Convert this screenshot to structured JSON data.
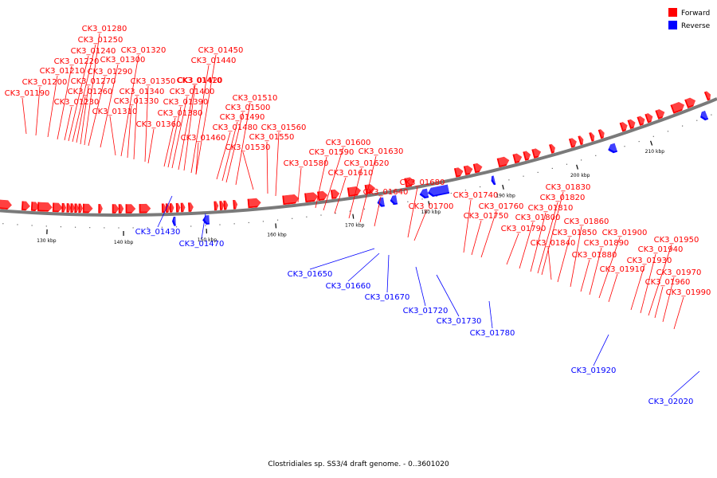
{
  "colors": {
    "forward": "#ff0000",
    "reverse": "#0000ff",
    "backbone": "#7a7a7a"
  },
  "legend": [
    {
      "label": "Forward",
      "color": "#ff0000"
    },
    {
      "label": "Reverse",
      "color": "#0000ff"
    }
  ],
  "caption": "Clostridiales sp. SS3/4 draft genome. - 0..3601020",
  "kbp_ticks": [
    "130 kbp",
    "140 kbp",
    "150 kbp",
    "160 kbp",
    "170 kbp",
    "180 kbp",
    "190 kbp",
    "200 kbp",
    "210 kbp"
  ],
  "forward_labels": [
    "CK3_01190",
    "CK3_01200",
    "CK3_01210",
    "CK3_01220",
    "CK3_01230",
    "CK3_01240",
    "CK3_01250",
    "CK3_01260",
    "CK3_01270",
    "CK3_01280",
    "CK3_01290",
    "CK3_01300",
    "CK3_01310",
    "CK3_01320",
    "CK3_01330",
    "CK3_01340",
    "CK3_01350",
    "CK3_01360",
    "CK3_01380",
    "CK3_01390",
    "CK3_01400",
    "CK3_01410",
    "CK3_01420",
    "CK3_01440",
    "CK3_01450",
    "CK3_01460",
    "CK3_01480",
    "CK3_01490",
    "CK3_01500",
    "CK3_01510",
    "CK3_01530",
    "CK3_01550",
    "CK3_01560",
    "CK3_01580",
    "CK3_01590",
    "CK3_01600",
    "CK3_01610",
    "CK3_01620",
    "CK3_01630",
    "CK3_01640",
    "CK3_01680",
    "CK3_01700",
    "CK3_01740",
    "CK3_01750",
    "CK3_01760",
    "CK3_01790",
    "CK3_01800",
    "CK3_01810",
    "CK3_01820",
    "CK3_01830",
    "CK3_01840",
    "CK3_01850",
    "CK3_01860",
    "CK3_01880",
    "CK3_01890",
    "CK3_01900",
    "CK3_01910",
    "CK3_01930",
    "CK3_01940",
    "CK3_01950",
    "CK3_01960",
    "CK3_01970",
    "CK3_01990"
  ],
  "reverse_labels": [
    "CK3_01430",
    "CK3_01470",
    "CK3_01650",
    "CK3_01660",
    "CK3_01670",
    "CK3_01720",
    "CK3_01730",
    "CK3_01780",
    "CK3_01920",
    "CK3_02020"
  ]
}
